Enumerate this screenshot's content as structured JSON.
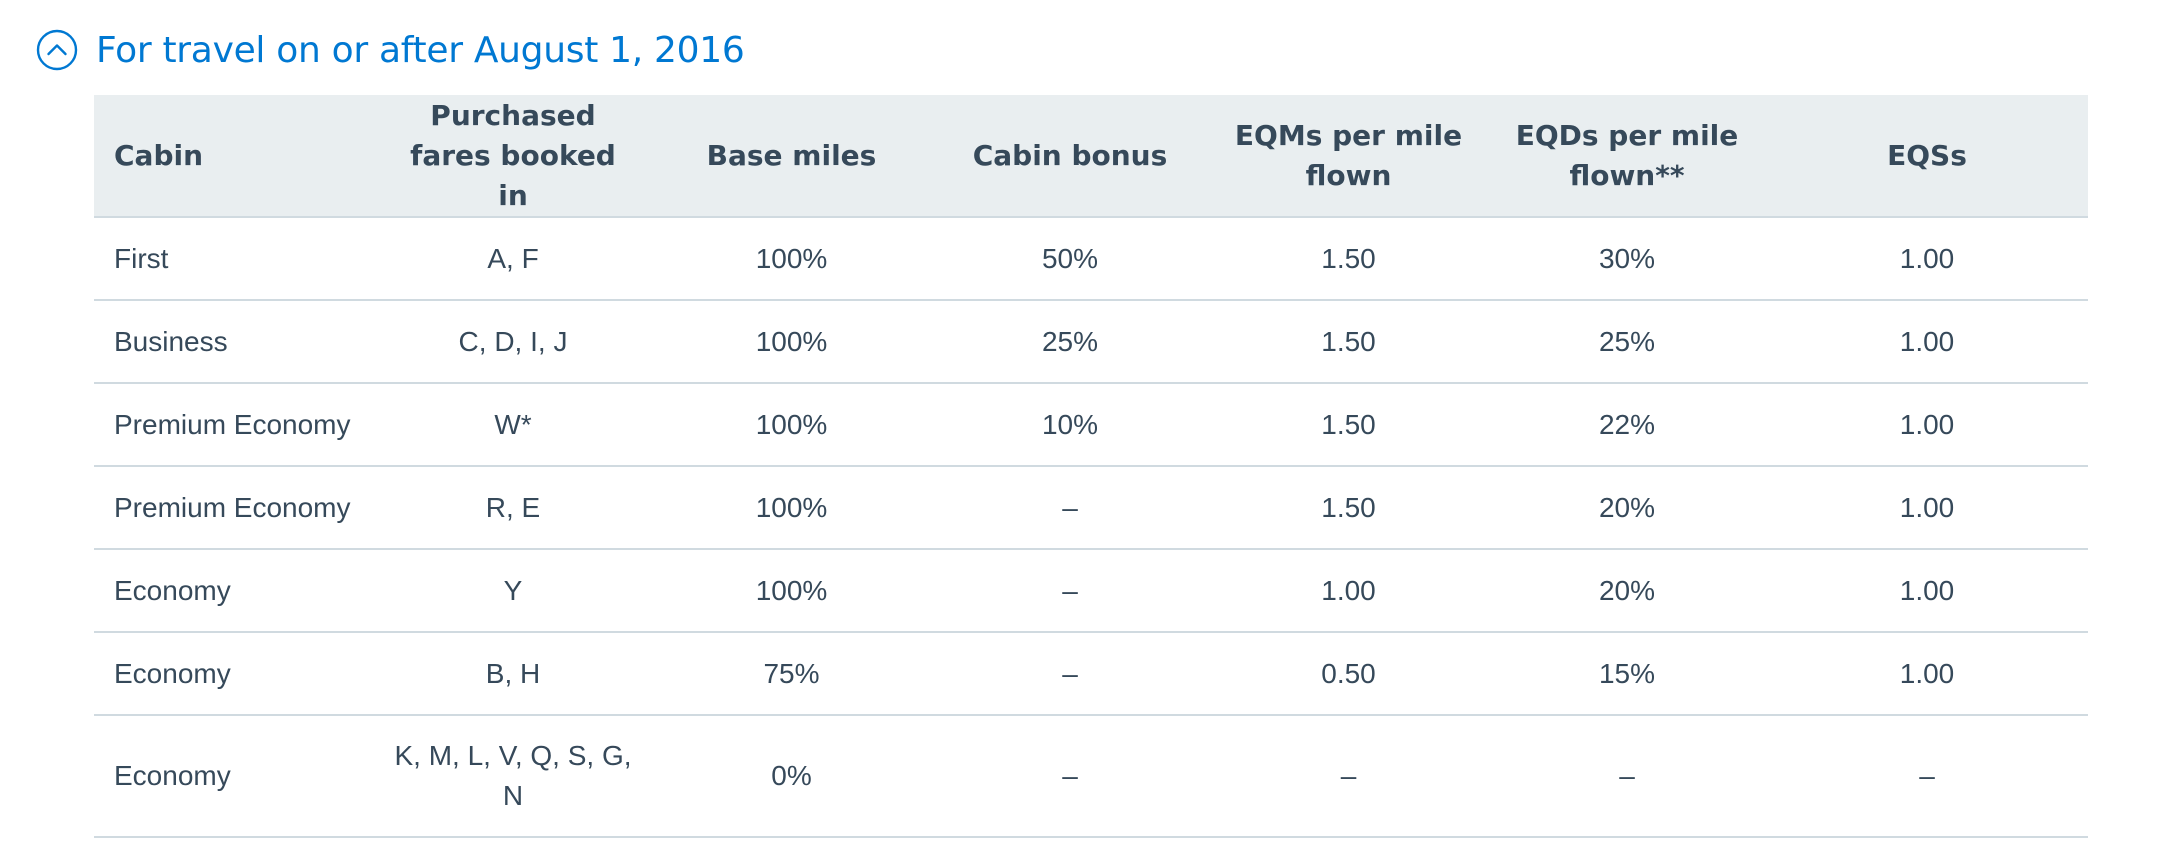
{
  "section": {
    "title": "For travel on or after August 1, 2016",
    "icon": "chevron-up-circle-icon",
    "accent_color": "#0078d2"
  },
  "table": {
    "headers": [
      "Cabin",
      "Purchased fares booked in",
      "Base miles",
      "Cabin bonus",
      "EQMs per mile flown",
      "EQDs per mile flown**",
      "EQSs"
    ],
    "rows": [
      [
        "First",
        "A, F",
        "100%",
        "50%",
        "1.50",
        "30%",
        "1.00"
      ],
      [
        "Business",
        "C, D, I, J",
        "100%",
        "25%",
        "1.50",
        "25%",
        "1.00"
      ],
      [
        "Premium Economy",
        "W*",
        "100%",
        "10%",
        "1.50",
        "22%",
        "1.00"
      ],
      [
        "Premium Economy",
        "R, E",
        "100%",
        "–",
        "1.50",
        "20%",
        "1.00"
      ],
      [
        "Economy",
        "Y",
        "100%",
        "–",
        "1.00",
        "20%",
        "1.00"
      ],
      [
        "Economy",
        "B, H",
        "75%",
        "–",
        "0.50",
        "15%",
        "1.00"
      ],
      [
        "Economy",
        "K, M, L, V, Q, S, G, N",
        "0%",
        "–",
        "–",
        "–",
        "–"
      ]
    ]
  }
}
